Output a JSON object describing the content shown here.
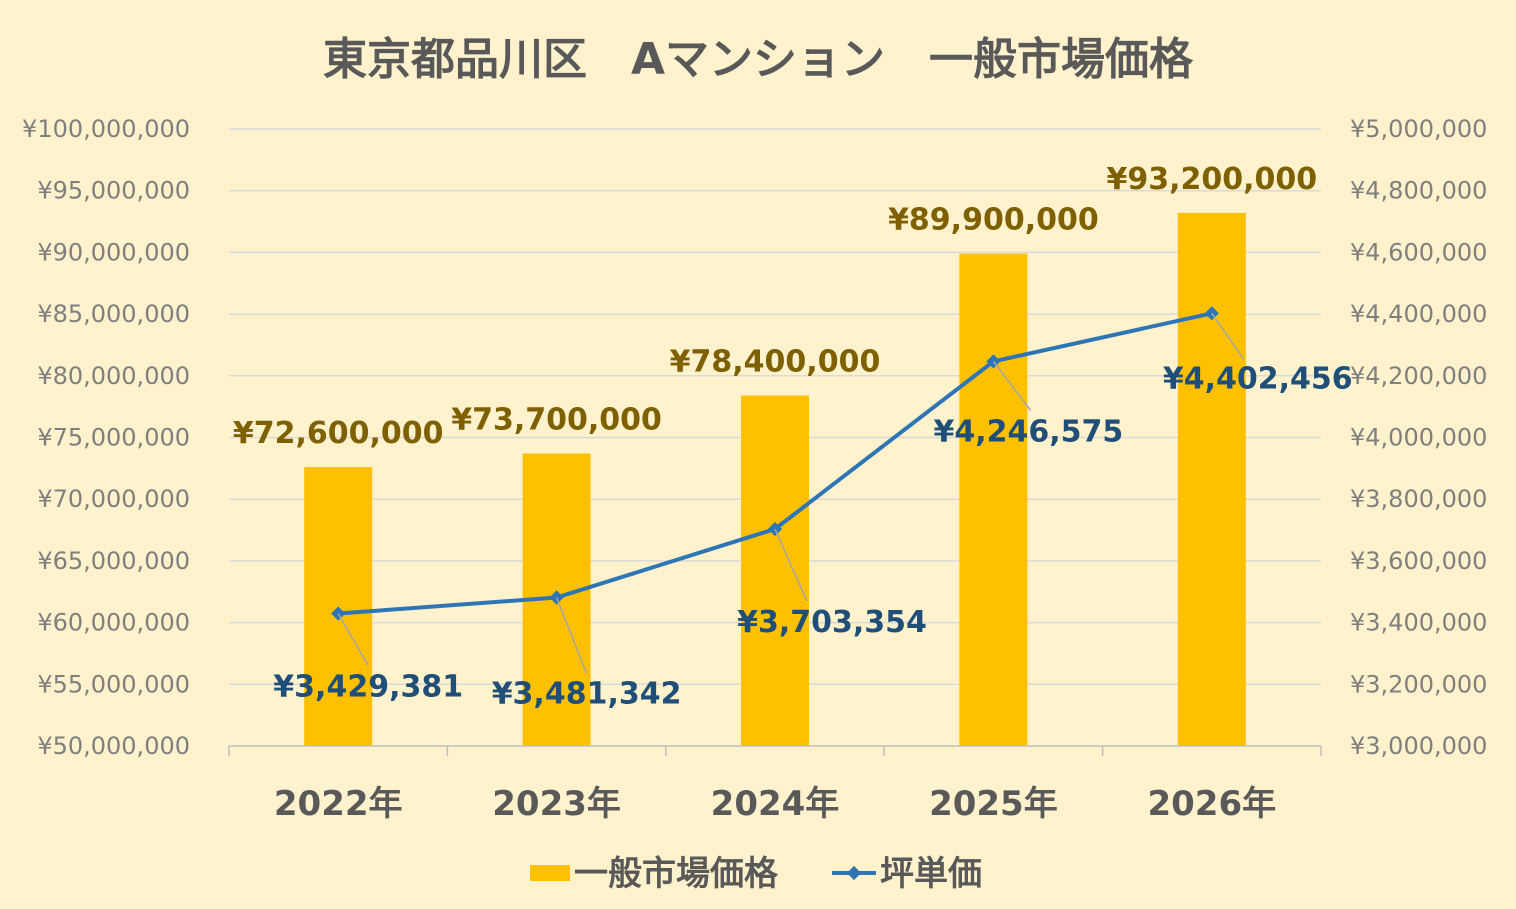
{
  "chart_data": {
    "type": "bar",
    "title": "東京都品川区　Aマンション　一般市場価格",
    "categories": [
      "2022年",
      "2023年",
      "2024年",
      "2025年",
      "2026年"
    ],
    "series": [
      {
        "name": "一般市場価格",
        "type": "bar",
        "axis": "left",
        "color": "#ffc000",
        "values": [
          72600000,
          73700000,
          78400000,
          89900000,
          93200000
        ],
        "labels": [
          "¥72,600,000",
          "¥73,700,000",
          "¥78,400,000",
          "¥89,900,000",
          "¥93,200,000"
        ]
      },
      {
        "name": "坪単価",
        "type": "line",
        "axis": "right",
        "color": "#2e75b6",
        "values": [
          3429381,
          3481342,
          3703354,
          4246575,
          4402456
        ],
        "labels": [
          "¥3,429,381",
          "¥3,481,342",
          "¥3,703,354",
          "¥4,246,575",
          "¥4,402,456"
        ]
      }
    ],
    "y_left": {
      "ylim": [
        50000000,
        100000000
      ],
      "ticks": [
        "¥50,000,000",
        "¥55,000,000",
        "¥60,000,000",
        "¥65,000,000",
        "¥70,000,000",
        "¥75,000,000",
        "¥80,000,000",
        "¥85,000,000",
        "¥90,000,000",
        "¥95,000,000",
        "¥100,000,000"
      ]
    },
    "y_right": {
      "ylim": [
        3000000,
        5000000
      ],
      "ticks": [
        "¥3,000,000",
        "¥3,200,000",
        "¥3,400,000",
        "¥3,600,000",
        "¥3,800,000",
        "¥4,000,000",
        "¥4,200,000",
        "¥4,400,000",
        "¥4,600,000",
        "¥4,800,000",
        "¥5,000,000"
      ]
    },
    "grid": true,
    "legend_position": "bottom",
    "background": "#fff2cc"
  }
}
